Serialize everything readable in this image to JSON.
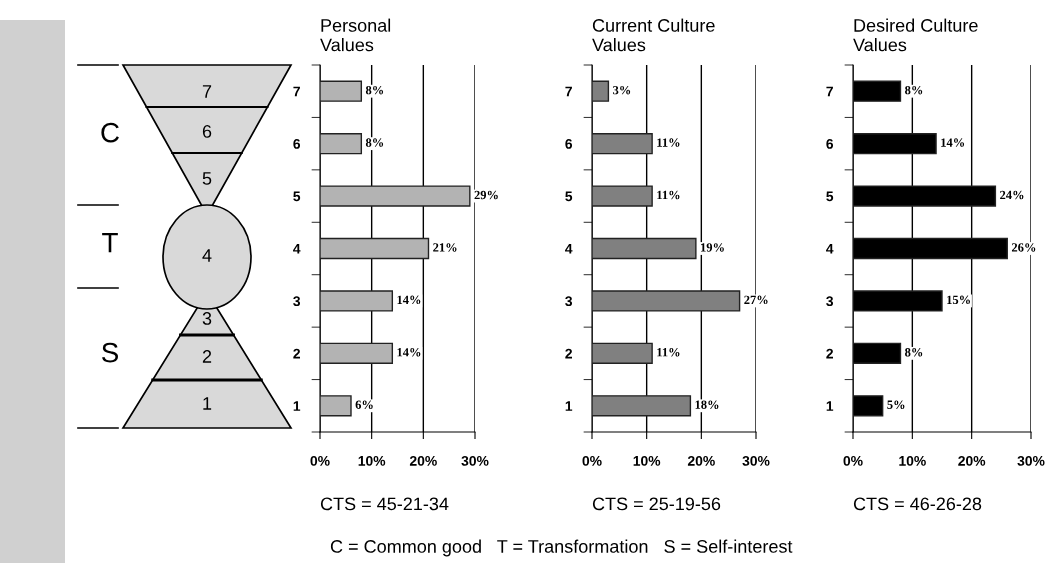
{
  "chart_data": [
    {
      "type": "other",
      "annotations": [
        "C",
        "T",
        "S",
        "7",
        "6",
        "5",
        "4",
        "3",
        "2",
        "1",
        "C = Common good   T = Transformation   S = Self-interest"
      ]
    },
    {
      "type": "bar",
      "orientation": "horizontal",
      "title": "Personal\nValues",
      "categories": [
        "7",
        "6",
        "5",
        "4",
        "3",
        "2",
        "1"
      ],
      "values": [
        8,
        8,
        29,
        21,
        14,
        14,
        6
      ],
      "color": "#b3b3b3",
      "value_labels": [
        "8%",
        "8%",
        "29%",
        "21%",
        "14%",
        "14%",
        "6%"
      ],
      "xlim": [
        0,
        30
      ],
      "xticks": [
        {
          "value": 0,
          "label": "0%"
        },
        {
          "value": 10,
          "label": "10%"
        },
        {
          "value": 20,
          "label": "20%"
        },
        {
          "value": 30,
          "label": "30%"
        }
      ],
      "grid": "x",
      "annotations": [
        "CTS = 45-21-34"
      ]
    },
    {
      "type": "bar",
      "orientation": "horizontal",
      "title": "Current Culture\nValues",
      "categories": [
        "7",
        "6",
        "5",
        "4",
        "3",
        "2",
        "1"
      ],
      "values": [
        3,
        11,
        11,
        19,
        27,
        11,
        18
      ],
      "color": "#808080",
      "value_labels": [
        "3%",
        "11%",
        "11%",
        "19%",
        "27%",
        "11%",
        "18%"
      ],
      "xlim": [
        0,
        30
      ],
      "xticks": [
        {
          "value": 0,
          "label": "0%"
        },
        {
          "value": 10,
          "label": "10%"
        },
        {
          "value": 20,
          "label": "20%"
        },
        {
          "value": 30,
          "label": "30%"
        }
      ],
      "grid": "x",
      "annotations": [
        "CTS = 25-19-56"
      ]
    },
    {
      "type": "bar",
      "orientation": "horizontal",
      "title": "Desired Culture\nValues",
      "categories": [
        "7",
        "6",
        "5",
        "4",
        "3",
        "2",
        "1"
      ],
      "values": [
        8,
        14,
        24,
        26,
        15,
        8,
        5
      ],
      "color": "#000000",
      "value_labels": [
        "8%",
        "14%",
        "24%",
        "26%",
        "15%",
        "8%",
        "5%"
      ],
      "xlim": [
        0,
        30
      ],
      "xticks": [
        {
          "value": 0,
          "label": "0%"
        },
        {
          "value": 10,
          "label": "10%"
        },
        {
          "value": 20,
          "label": "20%"
        },
        {
          "value": 30,
          "label": "30%"
        }
      ],
      "grid": "x",
      "annotations": [
        "CTS = 46-26-28"
      ]
    }
  ]
}
